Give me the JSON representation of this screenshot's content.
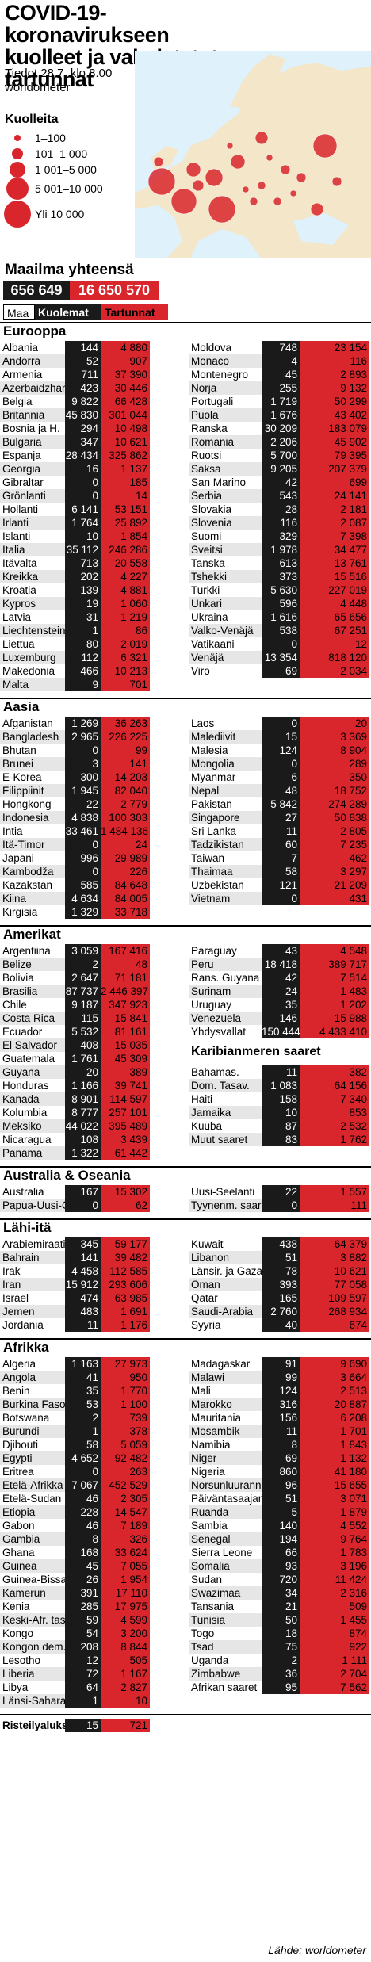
{
  "title": "COVID-19-koronavirukseen kuolleet ja vahvistetut tartunnat",
  "subtitle": "Tiedot 28.7. klo 8.00 worldometer",
  "legend": {
    "title": "Kuolleita",
    "items": [
      "1–100",
      "101–1 000",
      "1 001–5 000",
      "5 001–10 000",
      "Yli 10 000"
    ]
  },
  "world": {
    "label": "Maailma yhteensä",
    "deaths": "656 649",
    "cases": "16 650 570"
  },
  "key": {
    "country": "Maa",
    "deaths": "Kuolemat",
    "cases": "Tartunnat"
  },
  "colors": {
    "deaths_bg": "#1a1a1a",
    "cases_bg": "#d9262d",
    "stripe": "#e6e6e6"
  },
  "source": "Lähde: worldometer",
  "chart_data": {
    "type": "table",
    "columns": [
      "Maa",
      "Kuolemat",
      "Tartunnat"
    ],
    "sections": [
      {
        "title": "Eurooppa",
        "left": [
          [
            "Albania",
            "144",
            "4 880"
          ],
          [
            "Andorra",
            "52",
            "907"
          ],
          [
            "Armenia",
            "711",
            "37 390"
          ],
          [
            "Azerbaidzhan",
            "423",
            "30 446"
          ],
          [
            "Belgia",
            "9 822",
            "66 428"
          ],
          [
            "Britannia",
            "45 830",
            "301 044"
          ],
          [
            "Bosnia ja H.",
            "294",
            "10 498"
          ],
          [
            "Bulgaria",
            "347",
            "10 621"
          ],
          [
            "Espanja",
            "28 434",
            "325 862"
          ],
          [
            "Georgia",
            "16",
            "1 137"
          ],
          [
            "Gibraltar",
            "0",
            "185"
          ],
          [
            "Grönlanti",
            "0",
            "14"
          ],
          [
            "Hollanti",
            "6 141",
            "53 151"
          ],
          [
            "Irlanti",
            "1 764",
            "25 892"
          ],
          [
            "Islanti",
            "10",
            "1 854"
          ],
          [
            "Italia",
            "35 112",
            "246 286"
          ],
          [
            "Itävalta",
            "713",
            "20 558"
          ],
          [
            "Kreikka",
            "202",
            "4 227"
          ],
          [
            "Kroatia",
            "139",
            "4 881"
          ],
          [
            "Kypros",
            "19",
            "1 060"
          ],
          [
            "Latvia",
            "31",
            "1 219"
          ],
          [
            "Liechtenstein",
            "1",
            "86"
          ],
          [
            "Liettua",
            "80",
            "2 019"
          ],
          [
            "Luxemburg",
            "112",
            "6 321"
          ],
          [
            "Makedonia",
            "466",
            "10 213"
          ],
          [
            "Malta",
            "9",
            "701"
          ]
        ],
        "right": [
          [
            "Moldova",
            "748",
            "23 154"
          ],
          [
            "Monaco",
            "4",
            "116"
          ],
          [
            "Montenegro",
            "45",
            "2 893"
          ],
          [
            "Norja",
            "255",
            "9 132"
          ],
          [
            "Portugali",
            "1 719",
            "50 299"
          ],
          [
            "Puola",
            "1 676",
            "43 402"
          ],
          [
            "Ranska",
            "30 209",
            "183 079"
          ],
          [
            "Romania",
            "2 206",
            "45 902"
          ],
          [
            "Ruotsi",
            "5 700",
            "79 395"
          ],
          [
            "Saksa",
            "9 205",
            "207 379"
          ],
          [
            "San Marino",
            "42",
            "699"
          ],
          [
            "Serbia",
            "543",
            "24 141"
          ],
          [
            "Slovakia",
            "28",
            "2 181"
          ],
          [
            "Slovenia",
            "116",
            "2 087"
          ],
          [
            "Suomi",
            "329",
            "7 398"
          ],
          [
            "Sveitsi",
            "1 978",
            "34 477"
          ],
          [
            "Tanska",
            "613",
            "13 761"
          ],
          [
            "Tshekki",
            "373",
            "15 516"
          ],
          [
            "Turkki",
            "5 630",
            "227 019"
          ],
          [
            "Unkari",
            "596",
            "4 448"
          ],
          [
            "Ukraina",
            "1 616",
            "65 656"
          ],
          [
            "Valko-Venäjä",
            "538",
            "67 251"
          ],
          [
            "Vatikaani",
            "0",
            "12"
          ],
          [
            "Venäjä",
            "13 354",
            "818 120"
          ],
          [
            "Viro",
            "69",
            "2 034"
          ]
        ]
      },
      {
        "title": "Aasia",
        "left": [
          [
            "Afganistan",
            "1 269",
            "36 263"
          ],
          [
            "Bangladesh",
            "2 965",
            "226 225"
          ],
          [
            "Bhutan",
            "0",
            "99"
          ],
          [
            "Brunei",
            "3",
            "141"
          ],
          [
            "E-Korea",
            "300",
            "14 203"
          ],
          [
            "Filippiinit",
            "1 945",
            "82 040"
          ],
          [
            "Hongkong",
            "22",
            "2 779"
          ],
          [
            "Indonesia",
            "4 838",
            "100 303"
          ],
          [
            "Intia",
            "33 461",
            "1 484 136"
          ],
          [
            "Itä-Timor",
            "0",
            "24"
          ],
          [
            "Japani",
            "996",
            "29 989"
          ],
          [
            "Kambodža",
            "0",
            "226"
          ],
          [
            "Kazakstan",
            "585",
            "84 648"
          ],
          [
            "Kiina",
            "4 634",
            "84 005"
          ],
          [
            "Kirgisia",
            "1 329",
            "33 718"
          ]
        ],
        "right": [
          [
            "Laos",
            "0",
            "20"
          ],
          [
            "Malediivit",
            "15",
            "3 369"
          ],
          [
            "Malesia",
            "124",
            "8 904"
          ],
          [
            "Mongolia",
            "0",
            "289"
          ],
          [
            "Myanmar",
            "6",
            "350"
          ],
          [
            "Nepal",
            "48",
            "18 752"
          ],
          [
            "Pakistan",
            "5 842",
            "274 289"
          ],
          [
            "Singapore",
            "27",
            "50 838"
          ],
          [
            "Sri Lanka",
            "11",
            "2 805"
          ],
          [
            "Tadzikistan",
            "60",
            "7 235"
          ],
          [
            "Taiwan",
            "7",
            "462"
          ],
          [
            "Thaimaa",
            "58",
            "3 297"
          ],
          [
            "Uzbekistan",
            "121",
            "21 209"
          ],
          [
            "Vietnam",
            "0",
            "431"
          ]
        ]
      },
      {
        "title": "Amerikat",
        "left": [
          [
            "Argentiina",
            "3 059",
            "167 416"
          ],
          [
            "Belize",
            "2",
            "48"
          ],
          [
            "Bolivia",
            "2 647",
            "71 181"
          ],
          [
            "Brasilia",
            "87 737",
            "2 446 397"
          ],
          [
            "Chile",
            "9 187",
            "347 923"
          ],
          [
            "Costa Rica",
            "115",
            "15 841"
          ],
          [
            "Ecuador",
            "5 532",
            "81 161"
          ],
          [
            "El Salvador",
            "408",
            "15 035"
          ],
          [
            "Guatemala",
            "1 761",
            "45 309"
          ],
          [
            "Guyana",
            "20",
            "389"
          ],
          [
            "Honduras",
            "1 166",
            "39 741"
          ],
          [
            "Kanada",
            "8 901",
            "114 597"
          ],
          [
            "Kolumbia",
            "8 777",
            "257 101"
          ],
          [
            "Meksiko",
            "44 022",
            "395 489"
          ],
          [
            "Nicaragua",
            "108",
            "3 439"
          ],
          [
            "Panama",
            "1 322",
            "61 442"
          ]
        ],
        "right": [
          [
            "Paraguay",
            "43",
            "4 548"
          ],
          [
            "Peru",
            "18 418",
            "389 717"
          ],
          [
            "Rans. Guyana",
            "42",
            "7 514"
          ],
          [
            "Surinam",
            "24",
            "1 483"
          ],
          [
            "Uruguay",
            "35",
            "1 202"
          ],
          [
            "Venezuela",
            "146",
            "15 988"
          ],
          [
            "Yhdysvallat",
            "150 444",
            "4 433 410"
          ]
        ],
        "right_sub_title": "Karibianmeren saaret",
        "right_sub": [
          [
            "Bahamas.",
            "11",
            "382"
          ],
          [
            "Dom. Tasav.",
            "1 083",
            "64 156"
          ],
          [
            "Haiti",
            "158",
            "7 340"
          ],
          [
            "Jamaika",
            "10",
            "853"
          ],
          [
            "Kuuba",
            "87",
            "2 532"
          ],
          [
            "Muut saaret",
            "83",
            "1 762"
          ]
        ]
      },
      {
        "title": "Australia & Oseania",
        "left": [
          [
            "Australia",
            "167",
            "15 302"
          ],
          [
            "Papua-Uusi-G.",
            "0",
            "62"
          ]
        ],
        "right": [
          [
            "Uusi-Seelanti",
            "22",
            "1 557"
          ],
          [
            "Tyynenm. saaret",
            "0",
            "111"
          ]
        ]
      },
      {
        "title": "Lähi-itä",
        "left": [
          [
            "Arabiemiraatit",
            "345",
            "59 177"
          ],
          [
            "Bahrain",
            "141",
            "39 482"
          ],
          [
            "Irak",
            "4 458",
            "112 585"
          ],
          [
            "Iran",
            "15 912",
            "293 606"
          ],
          [
            "Israel",
            "474",
            "63 985"
          ],
          [
            "Jemen",
            "483",
            "1 691"
          ],
          [
            "Jordania",
            "11",
            "1 176"
          ]
        ],
        "right": [
          [
            "Kuwait",
            "438",
            "64 379"
          ],
          [
            "Libanon",
            "51",
            "3 882"
          ],
          [
            "Länsir. ja Gaza",
            "78",
            "10 621"
          ],
          [
            "Oman",
            "393",
            "77 058"
          ],
          [
            "Qatar",
            "165",
            "109 597"
          ],
          [
            "Saudi-Arabia",
            "2 760",
            "268 934"
          ],
          [
            "Syyria",
            "40",
            "674"
          ]
        ]
      },
      {
        "title": "Afrikka",
        "left": [
          [
            "Algeria",
            "1 163",
            "27 973"
          ],
          [
            "Angola",
            "41",
            "950"
          ],
          [
            "Benin",
            "35",
            "1 770"
          ],
          [
            "Burkina Faso",
            "53",
            "1 100"
          ],
          [
            "Botswana",
            "2",
            "739"
          ],
          [
            "Burundi",
            "1",
            "378"
          ],
          [
            "Djibouti",
            "58",
            "5 059"
          ],
          [
            "Egypti",
            "4 652",
            "92 482"
          ],
          [
            "Eritrea",
            "0",
            "263"
          ],
          [
            "Etelä-Afrikka",
            "7 067",
            "452 529"
          ],
          [
            "Etelä-Sudan",
            "46",
            "2 305"
          ],
          [
            "Etiopia",
            "228",
            "14 547"
          ],
          [
            "Gabon",
            "46",
            "7 189"
          ],
          [
            "Gambia",
            "8",
            "326"
          ],
          [
            "Ghana",
            "168",
            "33 624"
          ],
          [
            "Guinea",
            "45",
            "7 055"
          ],
          [
            "Guinea-Bissau",
            "26",
            "1 954"
          ],
          [
            "Kamerun",
            "391",
            "17 110"
          ],
          [
            "Kenia",
            "285",
            "17 975"
          ],
          [
            "Keski-Afr. tasav.",
            "59",
            "4 599"
          ],
          [
            "Kongo",
            "54",
            "3 200"
          ],
          [
            "Kongon dem.",
            "208",
            "8 844"
          ],
          [
            "Lesotho",
            "12",
            "505"
          ],
          [
            "Liberia",
            "72",
            "1 167"
          ],
          [
            "Libya",
            "64",
            "2 827"
          ],
          [
            "Länsi-Sahara",
            "1",
            "10"
          ]
        ],
        "right": [
          [
            "Madagaskar",
            "91",
            "9 690"
          ],
          [
            "Malawi",
            "99",
            "3 664"
          ],
          [
            "Mali",
            "124",
            "2 513"
          ],
          [
            "Marokko",
            "316",
            "20 887"
          ],
          [
            "Mauritania",
            "156",
            "6 208"
          ],
          [
            "Mosambik",
            "11",
            "1 701"
          ],
          [
            "Namibia",
            "8",
            "1 843"
          ],
          [
            "Niger",
            "69",
            "1 132"
          ],
          [
            "Nigeria",
            "860",
            "41 180"
          ],
          [
            "Norsunluurann.",
            "96",
            "15 655"
          ],
          [
            "Päiväntasaajan Guinea",
            "51",
            "3 071"
          ],
          [
            "Ruanda",
            "5",
            "1 879"
          ],
          [
            "Sambia",
            "140",
            "4 552"
          ],
          [
            "Senegal",
            "194",
            "9 764"
          ],
          [
            "Sierra Leone",
            "66",
            "1 783"
          ],
          [
            "Somalia",
            "93",
            "3 196"
          ],
          [
            "Sudan",
            "720",
            "11 424"
          ],
          [
            "Swazimaa",
            "34",
            "2 316"
          ],
          [
            "Tansania",
            "21",
            "509"
          ],
          [
            "Tunisia",
            "50",
            "1 455"
          ],
          [
            "Togo",
            "18",
            "874"
          ],
          [
            "Tsad",
            "75",
            "922"
          ],
          [
            "Uganda",
            "2",
            "1 111"
          ],
          [
            "Zimbabwe",
            "36",
            "2 704"
          ],
          [
            "Afrikan saaret",
            "95",
            "7 562"
          ]
        ]
      }
    ],
    "footer": [
      "Risteilyalukset",
      "15",
      "721"
    ]
  }
}
